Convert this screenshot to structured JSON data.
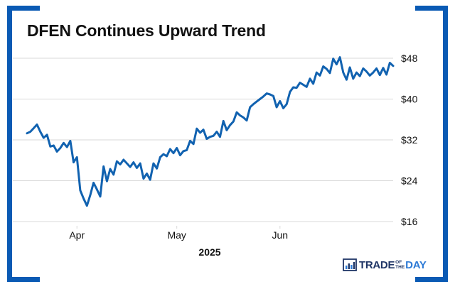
{
  "colors": {
    "accent": "#0a5ab4",
    "line": "#1162b0",
    "grid": "#d9d9d9",
    "text": "#111111",
    "brand_dark": "#1f3566",
    "brand_blue": "#2d7ad6"
  },
  "brand": {
    "word1": "TRADE",
    "small1": "OF",
    "small2": "THE",
    "word2": "DAY",
    "icon": "bar-chart-logo-icon"
  },
  "chart_data": {
    "type": "line",
    "title": "DFEN Continues Upward Trend",
    "xlabel": "2025",
    "ylabel": "",
    "x_range": [
      "2025-03-17",
      "2025-06-30"
    ],
    "ylim": [
      16,
      50
    ],
    "y_ticks": [
      {
        "value": 16,
        "label": "$16"
      },
      {
        "value": 24,
        "label": "$24"
      },
      {
        "value": 32,
        "label": "$32"
      },
      {
        "value": 40,
        "label": "$40"
      },
      {
        "value": 48,
        "label": "$48"
      }
    ],
    "x_ticks": [
      {
        "date": "2025-04-01",
        "label": "Apr"
      },
      {
        "date": "2025-05-01",
        "label": "May"
      },
      {
        "date": "2025-06-01",
        "label": "Jun"
      }
    ],
    "y_axis_position": "right",
    "grid": "horizontal",
    "legend": "none",
    "series": [
      {
        "name": "",
        "points": [
          [
            "2025-03-17",
            33.3
          ],
          [
            "2025-03-18",
            33.6
          ],
          [
            "2025-03-19",
            34.3
          ],
          [
            "2025-03-20",
            35.0
          ],
          [
            "2025-03-21",
            33.6
          ],
          [
            "2025-03-22",
            32.4
          ],
          [
            "2025-03-23",
            33.0
          ],
          [
            "2025-03-24",
            30.7
          ],
          [
            "2025-03-25",
            30.9
          ],
          [
            "2025-03-26",
            29.7
          ],
          [
            "2025-03-27",
            30.4
          ],
          [
            "2025-03-28",
            31.4
          ],
          [
            "2025-03-29",
            30.6
          ],
          [
            "2025-03-30",
            31.8
          ],
          [
            "2025-03-31",
            27.6
          ],
          [
            "2025-04-01",
            28.6
          ],
          [
            "2025-04-02",
            22.1
          ],
          [
            "2025-04-03",
            20.5
          ],
          [
            "2025-04-04",
            19.1
          ],
          [
            "2025-04-05",
            21.2
          ],
          [
            "2025-04-06",
            23.6
          ],
          [
            "2025-04-07",
            22.3
          ],
          [
            "2025-04-08",
            20.9
          ],
          [
            "2025-04-09",
            26.8
          ],
          [
            "2025-04-10",
            23.9
          ],
          [
            "2025-04-11",
            26.3
          ],
          [
            "2025-04-12",
            25.2
          ],
          [
            "2025-04-13",
            27.8
          ],
          [
            "2025-04-14",
            27.2
          ],
          [
            "2025-04-15",
            28.1
          ],
          [
            "2025-04-16",
            27.4
          ],
          [
            "2025-04-17",
            26.7
          ],
          [
            "2025-04-18",
            27.6
          ],
          [
            "2025-04-19",
            26.5
          ],
          [
            "2025-04-20",
            27.4
          ],
          [
            "2025-04-21",
            24.4
          ],
          [
            "2025-04-22",
            25.4
          ],
          [
            "2025-04-23",
            24.2
          ],
          [
            "2025-04-24",
            27.4
          ],
          [
            "2025-04-25",
            26.4
          ],
          [
            "2025-04-26",
            28.6
          ],
          [
            "2025-04-27",
            29.2
          ],
          [
            "2025-04-28",
            28.8
          ],
          [
            "2025-04-29",
            30.2
          ],
          [
            "2025-04-30",
            29.4
          ],
          [
            "2025-05-01",
            30.4
          ],
          [
            "2025-05-02",
            29.0
          ],
          [
            "2025-05-03",
            29.8
          ],
          [
            "2025-05-04",
            30.0
          ],
          [
            "2025-05-05",
            31.8
          ],
          [
            "2025-05-06",
            31.2
          ],
          [
            "2025-05-07",
            34.2
          ],
          [
            "2025-05-08",
            33.4
          ],
          [
            "2025-05-09",
            34.0
          ],
          [
            "2025-05-10",
            32.2
          ],
          [
            "2025-05-11",
            32.6
          ],
          [
            "2025-05-12",
            32.8
          ],
          [
            "2025-05-13",
            33.6
          ],
          [
            "2025-05-14",
            32.6
          ],
          [
            "2025-05-15",
            35.7
          ],
          [
            "2025-05-16",
            33.9
          ],
          [
            "2025-05-17",
            34.9
          ],
          [
            "2025-05-18",
            35.6
          ],
          [
            "2025-05-19",
            37.4
          ],
          [
            "2025-05-20",
            36.8
          ],
          [
            "2025-05-21",
            36.4
          ],
          [
            "2025-05-22",
            35.8
          ],
          [
            "2025-05-23",
            38.4
          ],
          [
            "2025-05-24",
            39.0
          ],
          [
            "2025-05-25",
            39.5
          ],
          [
            "2025-05-26",
            40.0
          ],
          [
            "2025-05-27",
            40.5
          ],
          [
            "2025-05-28",
            41.1
          ],
          [
            "2025-05-29",
            40.9
          ],
          [
            "2025-05-30",
            40.6
          ],
          [
            "2025-05-31",
            38.4
          ],
          [
            "2025-06-01",
            39.6
          ],
          [
            "2025-06-02",
            38.2
          ],
          [
            "2025-06-03",
            39.0
          ],
          [
            "2025-06-04",
            41.4
          ],
          [
            "2025-06-05",
            42.3
          ],
          [
            "2025-06-06",
            42.2
          ],
          [
            "2025-06-07",
            43.2
          ],
          [
            "2025-06-08",
            42.8
          ],
          [
            "2025-06-09",
            42.4
          ],
          [
            "2025-06-10",
            44.0
          ],
          [
            "2025-06-11",
            43.0
          ],
          [
            "2025-06-12",
            45.2
          ],
          [
            "2025-06-13",
            44.6
          ],
          [
            "2025-06-14",
            46.4
          ],
          [
            "2025-06-15",
            45.9
          ],
          [
            "2025-06-16",
            45.1
          ],
          [
            "2025-06-17",
            47.9
          ],
          [
            "2025-06-18",
            46.8
          ],
          [
            "2025-06-19",
            48.2
          ],
          [
            "2025-06-20",
            45.2
          ],
          [
            "2025-06-21",
            43.8
          ],
          [
            "2025-06-22",
            46.2
          ],
          [
            "2025-06-23",
            44.0
          ],
          [
            "2025-06-24",
            45.2
          ],
          [
            "2025-06-25",
            44.5
          ],
          [
            "2025-06-26",
            46.0
          ],
          [
            "2025-06-27",
            45.4
          ],
          [
            "2025-06-28",
            44.6
          ],
          [
            "2025-06-29",
            45.2
          ],
          [
            "2025-06-30",
            46.0
          ],
          [
            "2025-07-01",
            44.7
          ],
          [
            "2025-07-02",
            46.1
          ],
          [
            "2025-07-03",
            44.8
          ],
          [
            "2025-07-04",
            47.1
          ],
          [
            "2025-07-05",
            46.5
          ]
        ]
      }
    ]
  }
}
